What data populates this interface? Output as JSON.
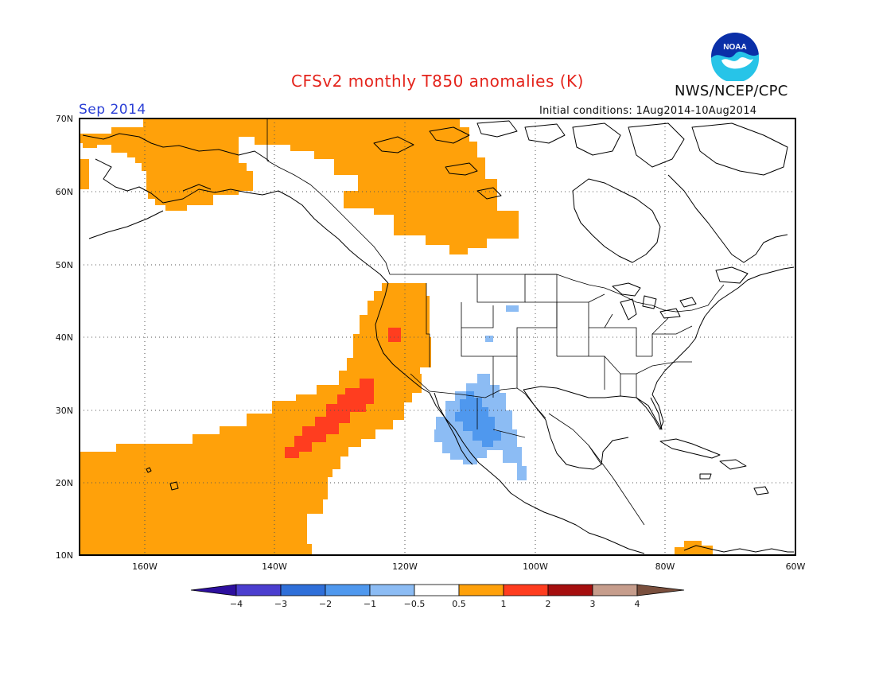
{
  "header": {
    "title": "CFSv2 monthly T850 anomalies (K)",
    "month": "Sep 2014",
    "initial_conditions": "Initial conditions: 1Aug2014-10Aug2014",
    "agency": "NWS/NCEP/CPC",
    "logo_text": "NOAA"
  },
  "axes": {
    "lat_labels": [
      "70N",
      "60N",
      "50N",
      "40N",
      "30N",
      "20N",
      "10N"
    ],
    "lon_labels": [
      "160W",
      "140W",
      "120W",
      "100W",
      "80W",
      "60W"
    ]
  },
  "colorbar": {
    "labels": [
      "−4",
      "−3",
      "−2",
      "−1",
      "−0.5",
      "0.5",
      "1",
      "2",
      "3",
      "4"
    ],
    "colors": [
      "#2d0f9e",
      "#4b3ecf",
      "#2f6fd9",
      "#4f98ee",
      "#8cbcf4",
      "#ffffff",
      "#ffa10a",
      "#ff3d1f",
      "#a50e0e",
      "#c69d8c",
      "#7a4f3d"
    ]
  },
  "map": {
    "region": {
      "lon_min": -170,
      "lon_max": -60,
      "lat_min": 10,
      "lat_max": 70
    },
    "anomaly_areas": [
      {
        "level": "0.5 to 1",
        "color": "#ffa10a",
        "region": "Alaska and Bering Sea"
      },
      {
        "level": "0.5 to 1",
        "color": "#ffa10a",
        "region": "Yukon and Northwest Territories"
      },
      {
        "level": "0.5 to 1",
        "color": "#ffa10a",
        "region": "Eastern North Pacific and US West Coast"
      },
      {
        "level": "0.5 to 1",
        "color": "#ffa10a",
        "region": "Caribbean near Venezuela"
      },
      {
        "level": "1 to 2",
        "color": "#ff3d1f",
        "region": "Pacific off Baja California"
      },
      {
        "level": "1 to 2",
        "color": "#ff3d1f",
        "region": "Northern California"
      },
      {
        "level": "-1 to -0.5",
        "color": "#8cbcf4",
        "region": "Northwest Mexico and US Southwest"
      },
      {
        "level": "-2 to -1",
        "color": "#4f98ee",
        "region": "Sonora and Chihuahua"
      }
    ]
  }
}
